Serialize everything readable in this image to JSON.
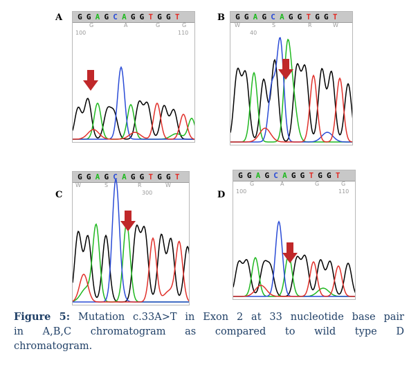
{
  "figure": {
    "caption_label": "Figure 5:",
    "caption_text_line1": "Mutation c.33A>T in Exon 2 at 33 nucleotide base pair",
    "caption_text_line2": "in A,B,C chromatogram as compared to wild type D",
    "caption_text_line3": "chromatogram."
  },
  "panels": [
    {
      "label": "A",
      "sequence": [
        "G",
        "G",
        "A",
        "G",
        "C",
        "A",
        "G",
        "G",
        "T",
        "G",
        "G",
        "T"
      ],
      "calls": [
        "G",
        "A",
        "G",
        "G"
      ],
      "positions": [
        "100",
        "110"
      ]
    },
    {
      "label": "B",
      "sequence": [
        "G",
        "G",
        "A",
        "G",
        "C",
        "A",
        "G",
        "G",
        "T",
        "G",
        "G",
        "T"
      ],
      "calls": [
        "W",
        "S",
        "R",
        "W"
      ],
      "positions": [
        "40"
      ]
    },
    {
      "label": "C",
      "sequence": [
        "G",
        "G",
        "A",
        "G",
        "C",
        "A",
        "G",
        "G",
        "T",
        "G",
        "G",
        "T"
      ],
      "calls": [
        "W",
        "S",
        "R",
        "W"
      ],
      "positions": [
        "300"
      ]
    },
    {
      "label": "D",
      "sequence": [
        "G",
        "G",
        "A",
        "G",
        "C",
        "A",
        "G",
        "G",
        "T",
        "G",
        "G",
        "T"
      ],
      "calls": [
        "G",
        "A",
        "G",
        "G"
      ],
      "positions": [
        "100",
        "110"
      ]
    }
  ],
  "colors": {
    "G": "#000000",
    "A": "#1fb81f",
    "C": "#2a4bd6",
    "T": "#e0302a",
    "arrow": "#c0282a"
  }
}
